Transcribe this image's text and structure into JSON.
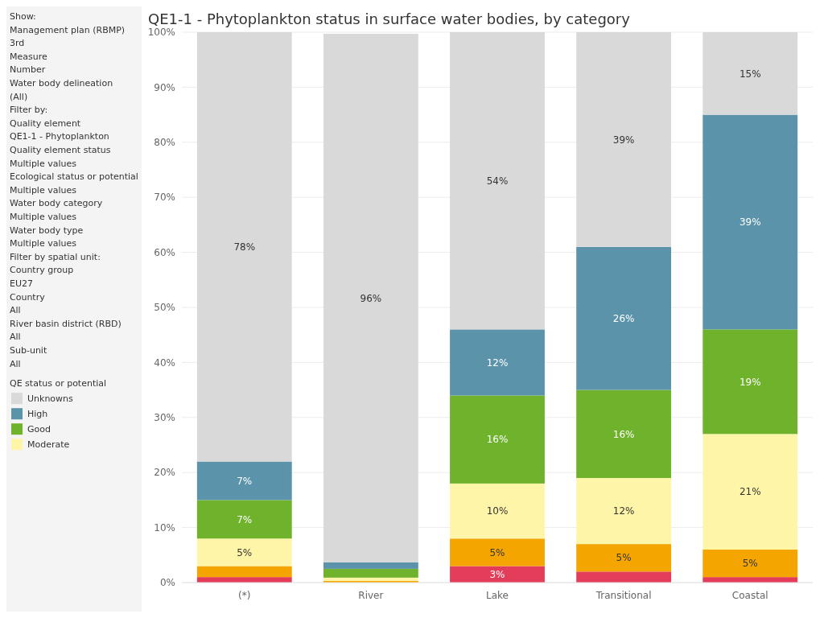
{
  "chart_data": {
    "type": "bar",
    "stacked": true,
    "title": "QE1-1 - Phytoplankton status in surface water bodies, by category",
    "categories": [
      "(*)",
      "River",
      "Lake",
      "Transitional",
      "Coastal"
    ],
    "series": [
      {
        "name": null,
        "color": "#e43d5a",
        "values": [
          1,
          null,
          3,
          2,
          1
        ],
        "value_labels": [
          null,
          null,
          "3%",
          null,
          null
        ]
      },
      {
        "name": null,
        "color": "#f5a500",
        "values": [
          2,
          0.3,
          5,
          5,
          5
        ],
        "value_labels": [
          null,
          null,
          "5%",
          "5%",
          "5%"
        ]
      },
      {
        "name": "Moderate",
        "color": "#fff5a8",
        "values": [
          5,
          0.6,
          10,
          12,
          21
        ],
        "value_labels": [
          "5%",
          null,
          "10%",
          "12%",
          "21%"
        ]
      },
      {
        "name": "Good",
        "color": "#6fb22c",
        "values": [
          7,
          1.6,
          16,
          16,
          19
        ],
        "value_labels": [
          "7%",
          null,
          "16%",
          "16%",
          "19%"
        ]
      },
      {
        "name": "High",
        "color": "#5b94aa",
        "values": [
          7,
          1.2,
          12,
          26,
          39
        ],
        "value_labels": [
          "7%",
          null,
          "12%",
          "26%",
          "39%"
        ]
      },
      {
        "name": "Unknowns",
        "color": "#d9d9d9",
        "values": [
          78,
          96,
          54,
          39,
          15
        ],
        "value_labels": [
          "78%",
          "96%",
          "54%",
          "39%",
          "15%"
        ]
      }
    ],
    "ylim": [
      0,
      100
    ],
    "yticks": [
      {
        "value": 0,
        "label": "0%"
      },
      {
        "value": 10,
        "label": "10%"
      },
      {
        "value": 20,
        "label": "20%"
      },
      {
        "value": 30,
        "label": "30%"
      },
      {
        "value": 40,
        "label": "40%"
      },
      {
        "value": 50,
        "label": "50%"
      },
      {
        "value": 60,
        "label": "60%"
      },
      {
        "value": 70,
        "label": "70%"
      },
      {
        "value": 80,
        "label": "80%"
      },
      {
        "value": 90,
        "label": "90%"
      },
      {
        "value": 100,
        "label": "100%"
      }
    ],
    "grid": "y",
    "legend": "left",
    "legend_title": "QE status or potential",
    "annotations": [
      "Show:",
      "Management plan (RBMP)",
      "3rd",
      "Measure",
      "Number",
      "Water body delineation",
      "(All)",
      "Filter by:",
      "Quality element",
      "QE1-1 - Phytoplankton",
      "Quality element status",
      "Multiple values",
      "Ecological status or potential",
      "Multiple values",
      "Water body category",
      "Multiple values",
      "Water body type",
      "Multiple values",
      "Filter by spatial unit:",
      "Country group",
      "EU27",
      "Country",
      "All",
      "River basin district (RBD)",
      "All",
      "Sub-unit",
      "All"
    ]
  }
}
